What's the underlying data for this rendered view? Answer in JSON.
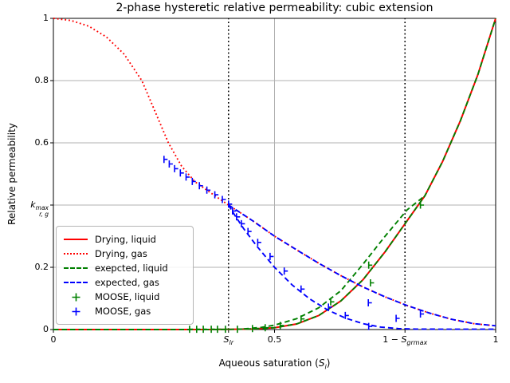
{
  "figure": {
    "title": "2-phase hysteretic relative permeability: cubic extension",
    "ylabel": "Relative permeability",
    "xlabel": {
      "pre": "Aqueous saturation (",
      "sym": "S",
      "sub": "l",
      "post": ")"
    },
    "background": "#ffffff",
    "spine_color": "#000000",
    "grid_color": "#b0b0b0"
  },
  "axes": {
    "xlim": [
      0,
      1
    ],
    "ylim": [
      0,
      1
    ],
    "x_ticks": [
      {
        "pos": 0,
        "label": "0"
      },
      {
        "pos": 0.396,
        "math": {
          "pre": "",
          "sym": "S",
          "sub": "lr"
        }
      },
      {
        "pos": 0.5,
        "label": "0.5"
      },
      {
        "pos": 0.795,
        "math": {
          "pre": "1 − ",
          "sym": "S",
          "sub": "grmax"
        }
      },
      {
        "pos": 1,
        "label": "1"
      }
    ],
    "y_ticks": [
      {
        "pos": 0,
        "label": "0"
      },
      {
        "pos": 0.2,
        "label": "0.2"
      },
      {
        "pos": 0.4,
        "math_stacked": {
          "sym": "k",
          "sup": "max",
          "sub": "r, g"
        }
      },
      {
        "pos": 0.6,
        "label": "0.6"
      },
      {
        "pos": 0.8,
        "label": "0.8"
      },
      {
        "pos": 1,
        "label": "1"
      }
    ]
  },
  "legend": {
    "items": [
      {
        "label": "Drying, liquid",
        "swatch": "line-solid",
        "color": "#ff0000"
      },
      {
        "label": "Drying, gas",
        "swatch": "line-dotted",
        "color": "#ff0000"
      },
      {
        "label": "exepcted, liquid",
        "swatch": "line-dashed",
        "color": "#008000"
      },
      {
        "label": "expected, gas",
        "swatch": "line-dashed",
        "color": "#0000ff"
      },
      {
        "label": "MOOSE, liquid",
        "swatch": "plus",
        "color": "#008000"
      },
      {
        "label": "MOOSE, gas",
        "swatch": "plus",
        "color": "#0000ff"
      }
    ]
  },
  "chart_data": {
    "type": "line",
    "title": "2-phase hysteretic relative permeability: cubic extension",
    "xlabel": "Aqueous saturation (S_l)",
    "ylabel": "Relative permeability",
    "xlim": [
      0,
      1
    ],
    "ylim": [
      0,
      1
    ],
    "grid": {
      "y": [
        0.2,
        0.4,
        0.6,
        0.8
      ],
      "x": [
        0.5
      ]
    },
    "vlines": [
      {
        "x": 0.396,
        "label": "S_lr",
        "style": "dotted",
        "color": "#000000"
      },
      {
        "x": 0.795,
        "label": "1 - S_grmax",
        "style": "dotted",
        "color": "#000000"
      }
    ],
    "special_y": {
      "label": "k_r,g^max",
      "value": 0.4
    },
    "series": [
      {
        "name": "Drying, liquid",
        "color": "#ff0000",
        "style": "solid",
        "points": [
          [
            0,
            0
          ],
          [
            0.1,
            0
          ],
          [
            0.2,
            0
          ],
          [
            0.3,
            0
          ],
          [
            0.35,
            0
          ],
          [
            0.4,
            0.0005
          ],
          [
            0.45,
            0.002
          ],
          [
            0.5,
            0.006
          ],
          [
            0.55,
            0.018
          ],
          [
            0.6,
            0.045
          ],
          [
            0.65,
            0.092
          ],
          [
            0.7,
            0.16
          ],
          [
            0.75,
            0.25
          ],
          [
            0.8,
            0.35
          ],
          [
            0.84,
            0.43
          ],
          [
            0.88,
            0.54
          ],
          [
            0.92,
            0.67
          ],
          [
            0.96,
            0.82
          ],
          [
            1,
            1
          ]
        ]
      },
      {
        "name": "Drying, gas",
        "color": "#ff0000",
        "style": "dotted",
        "points": [
          [
            0,
            1
          ],
          [
            0.04,
            0.993
          ],
          [
            0.08,
            0.975
          ],
          [
            0.12,
            0.94
          ],
          [
            0.16,
            0.885
          ],
          [
            0.2,
            0.8
          ],
          [
            0.23,
            0.7
          ],
          [
            0.26,
            0.6
          ],
          [
            0.29,
            0.525
          ],
          [
            0.32,
            0.475
          ],
          [
            0.36,
            0.435
          ],
          [
            0.396,
            0.4
          ],
          [
            0.42,
            0.378
          ],
          [
            0.45,
            0.35
          ],
          [
            0.5,
            0.3
          ],
          [
            0.55,
            0.256
          ],
          [
            0.6,
            0.213
          ],
          [
            0.65,
            0.173
          ],
          [
            0.7,
            0.137
          ],
          [
            0.75,
            0.105
          ],
          [
            0.8,
            0.077
          ],
          [
            0.85,
            0.053
          ],
          [
            0.9,
            0.033
          ],
          [
            0.95,
            0.019
          ],
          [
            1,
            0.012
          ]
        ]
      },
      {
        "name": "exepcted, liquid",
        "color": "#008000",
        "style": "dashed",
        "branches": [
          [
            [
              0,
              0
            ],
            [
              0.1,
              0
            ],
            [
              0.2,
              0
            ],
            [
              0.3,
              0
            ],
            [
              0.35,
              0
            ],
            [
              0.4,
              0.0005
            ],
            [
              0.45,
              0.002
            ],
            [
              0.5,
              0.006
            ],
            [
              0.55,
              0.018
            ],
            [
              0.6,
              0.045
            ],
            [
              0.65,
              0.092
            ],
            [
              0.7,
              0.16
            ],
            [
              0.75,
              0.25
            ],
            [
              0.8,
              0.35
            ],
            [
              0.84,
              0.43
            ],
            [
              0.88,
              0.54
            ],
            [
              0.92,
              0.67
            ],
            [
              0.96,
              0.82
            ],
            [
              1,
              1
            ]
          ],
          [
            [
              0.43,
              0.002
            ],
            [
              0.47,
              0.007
            ],
            [
              0.5,
              0.014
            ],
            [
              0.55,
              0.035
            ],
            [
              0.6,
              0.07
            ],
            [
              0.65,
              0.125
            ],
            [
              0.7,
              0.21
            ],
            [
              0.75,
              0.3
            ],
            [
              0.8,
              0.385
            ],
            [
              0.84,
              0.43
            ]
          ]
        ]
      },
      {
        "name": "expected, gas",
        "color": "#0000ff",
        "style": "dashed",
        "branches": [
          [
            [
              0.396,
              0.4
            ],
            [
              0.42,
              0.378
            ],
            [
              0.45,
              0.35
            ],
            [
              0.5,
              0.3
            ],
            [
              0.55,
              0.256
            ],
            [
              0.6,
              0.213
            ],
            [
              0.65,
              0.173
            ],
            [
              0.7,
              0.137
            ],
            [
              0.75,
              0.105
            ],
            [
              0.8,
              0.077
            ],
            [
              0.85,
              0.053
            ],
            [
              0.9,
              0.033
            ],
            [
              0.95,
              0.019
            ],
            [
              1,
              0.012
            ]
          ],
          [
            [
              0.396,
              0.4
            ],
            [
              0.41,
              0.368
            ],
            [
              0.43,
              0.325
            ],
            [
              0.46,
              0.268
            ],
            [
              0.5,
              0.2
            ],
            [
              0.54,
              0.143
            ],
            [
              0.58,
              0.098
            ],
            [
              0.62,
              0.063
            ],
            [
              0.66,
              0.037
            ],
            [
              0.7,
              0.019
            ],
            [
              0.74,
              0.008
            ],
            [
              0.78,
              0.003
            ],
            [
              0.82,
              0.0015
            ],
            [
              0.9,
              0.001
            ],
            [
              1,
              0.001
            ]
          ]
        ]
      },
      {
        "name": "MOOSE, liquid",
        "color": "#008000",
        "style": "plus",
        "points": [
          [
            0.308,
            0.001
          ],
          [
            0.324,
            0.001
          ],
          [
            0.339,
            0.001
          ],
          [
            0.357,
            0.001
          ],
          [
            0.371,
            0.001
          ],
          [
            0.389,
            0.001
          ],
          [
            0.416,
            0.001
          ],
          [
            0.45,
            0.003
          ],
          [
            0.479,
            0.006
          ],
          [
            0.513,
            0.013
          ],
          [
            0.56,
            0.034
          ],
          [
            0.627,
            0.089
          ],
          [
            0.713,
            0.207
          ],
          [
            0.717,
            0.15
          ],
          [
            0.83,
            0.4
          ]
        ]
      },
      {
        "name": "MOOSE, gas",
        "color": "#0000ff",
        "style": "plus",
        "points": [
          [
            0.25,
            0.547
          ],
          [
            0.262,
            0.532
          ],
          [
            0.274,
            0.517
          ],
          [
            0.287,
            0.503
          ],
          [
            0.3,
            0.49
          ],
          [
            0.314,
            0.476
          ],
          [
            0.33,
            0.462
          ],
          [
            0.347,
            0.448
          ],
          [
            0.365,
            0.433
          ],
          [
            0.382,
            0.418
          ],
          [
            0.396,
            0.403
          ],
          [
            0.405,
            0.381
          ],
          [
            0.414,
            0.362
          ],
          [
            0.425,
            0.34
          ],
          [
            0.44,
            0.315
          ],
          [
            0.462,
            0.28
          ],
          [
            0.49,
            0.235
          ],
          [
            0.522,
            0.188
          ],
          [
            0.56,
            0.13
          ],
          [
            0.622,
            0.072
          ],
          [
            0.66,
            0.045
          ],
          [
            0.712,
            0.086
          ],
          [
            0.713,
            0.01
          ],
          [
            0.775,
            0.036
          ],
          [
            0.83,
            0.05
          ]
        ]
      }
    ]
  }
}
